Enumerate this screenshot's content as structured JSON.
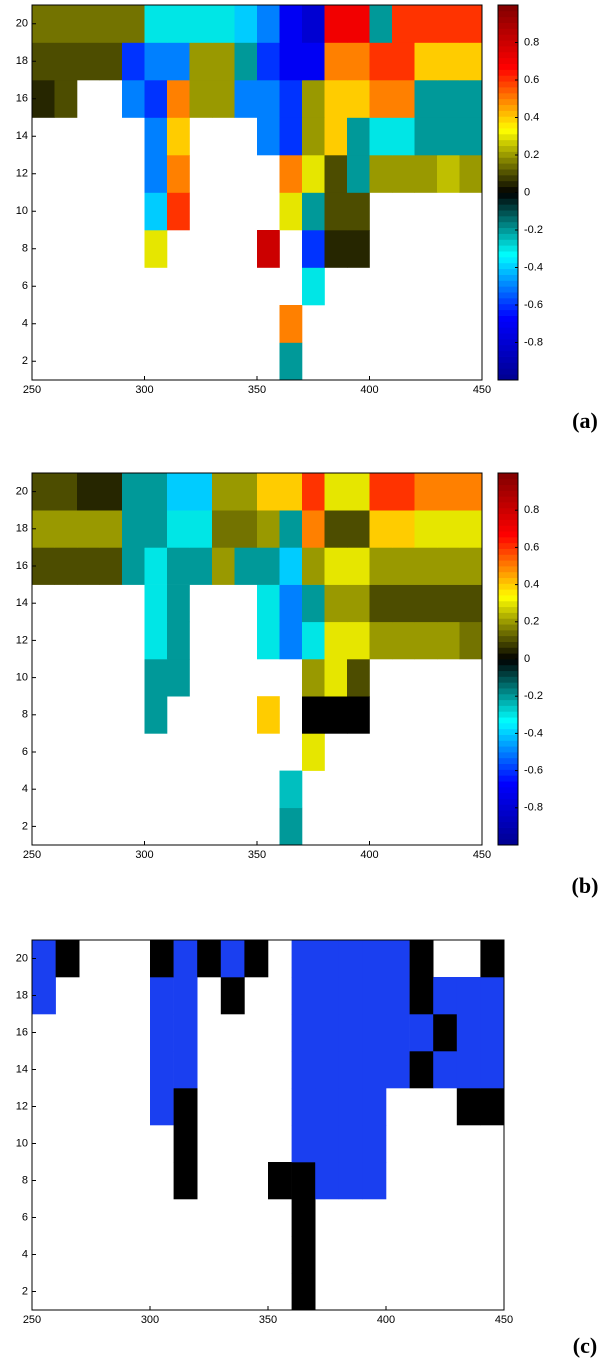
{
  "chart_data": [
    {
      "type": "heatmap",
      "panel_label": "(a)",
      "xbins": [
        250,
        260,
        270,
        280,
        290,
        300,
        310,
        320,
        330,
        340,
        350,
        360,
        370,
        380,
        390,
        400,
        410,
        420,
        430,
        440,
        450
      ],
      "ybins": [
        1,
        3,
        5,
        7,
        9,
        11,
        13,
        15,
        17,
        19,
        21
      ],
      "z": [
        [
          null,
          null,
          null,
          null,
          null,
          null,
          null,
          null,
          null,
          null,
          null,
          -0.2,
          null,
          null,
          null,
          null,
          null,
          null,
          null,
          null
        ],
        [
          null,
          null,
          null,
          null,
          null,
          null,
          null,
          null,
          null,
          null,
          null,
          0.5,
          null,
          null,
          null,
          null,
          null,
          null,
          null,
          null
        ],
        [
          null,
          null,
          null,
          null,
          null,
          null,
          null,
          null,
          null,
          null,
          null,
          null,
          -0.3,
          null,
          null,
          null,
          null,
          null,
          null,
          null
        ],
        [
          null,
          null,
          null,
          null,
          null,
          0.3,
          null,
          null,
          null,
          null,
          0.8,
          null,
          -0.6,
          0.05,
          0.05,
          null,
          null,
          null,
          null,
          null
        ],
        [
          null,
          null,
          null,
          null,
          null,
          -0.4,
          0.6,
          null,
          null,
          null,
          null,
          0.3,
          -0.2,
          0.1,
          0.1,
          null,
          null,
          null,
          null,
          null
        ],
        [
          null,
          null,
          null,
          null,
          null,
          -0.5,
          0.5,
          null,
          null,
          null,
          null,
          0.5,
          0.3,
          0.1,
          -0.2,
          0.2,
          0.2,
          0.2,
          0.25,
          0.2
        ],
        [
          null,
          null,
          null,
          null,
          null,
          -0.5,
          0.4,
          null,
          null,
          null,
          -0.5,
          -0.6,
          0.2,
          0.4,
          -0.2,
          -0.3,
          -0.3,
          -0.2,
          -0.2,
          -0.2
        ],
        [
          0.05,
          0.1,
          null,
          null,
          -0.5,
          -0.6,
          0.5,
          0.2,
          0.2,
          -0.5,
          -0.5,
          -0.6,
          0.2,
          0.4,
          0.4,
          0.5,
          0.5,
          -0.2,
          -0.2,
          -0.2
        ],
        [
          0.1,
          0.1,
          0.1,
          0.1,
          -0.6,
          -0.5,
          -0.5,
          0.2,
          0.2,
          -0.2,
          -0.6,
          -0.7,
          -0.7,
          0.5,
          0.5,
          0.6,
          0.6,
          0.4,
          0.4,
          0.4
        ],
        [
          0.15,
          0.15,
          0.15,
          0.15,
          0.15,
          -0.3,
          -0.3,
          -0.3,
          -0.3,
          -0.4,
          -0.5,
          -0.7,
          -0.8,
          0.7,
          0.7,
          -0.2,
          0.6,
          0.6,
          0.6,
          0.6
        ]
      ],
      "colormap": [
        "#00008f",
        "#0000ff",
        "#00ffff",
        "#000000",
        "#ffff00",
        "#ff0000",
        "#800000"
      ],
      "clim": [
        -1,
        1
      ],
      "cticks": [
        -0.8,
        -0.6,
        -0.4,
        -0.2,
        0,
        0.2,
        0.4,
        0.6,
        0.8
      ],
      "xlim": [
        250,
        450
      ],
      "ylim": [
        1,
        21
      ],
      "xticks": [
        250,
        300,
        350,
        400,
        450
      ],
      "yticks": [
        2,
        4,
        6,
        8,
        10,
        12,
        14,
        16,
        18,
        20
      ]
    },
    {
      "type": "heatmap",
      "panel_label": "(b)",
      "xbins": [
        250,
        260,
        270,
        280,
        290,
        300,
        310,
        320,
        330,
        340,
        350,
        360,
        370,
        380,
        390,
        400,
        410,
        420,
        430,
        440,
        450
      ],
      "ybins": [
        1,
        3,
        5,
        7,
        9,
        11,
        13,
        15,
        17,
        19,
        21
      ],
      "z": [
        [
          null,
          null,
          null,
          null,
          null,
          null,
          null,
          null,
          null,
          null,
          null,
          -0.2,
          null,
          null,
          null,
          null,
          null,
          null,
          null,
          null
        ],
        [
          null,
          null,
          null,
          null,
          null,
          null,
          null,
          null,
          null,
          null,
          null,
          -0.25,
          null,
          null,
          null,
          null,
          null,
          null,
          null,
          null
        ],
        [
          null,
          null,
          null,
          null,
          null,
          null,
          null,
          null,
          null,
          null,
          null,
          null,
          0.3,
          null,
          null,
          null,
          null,
          null,
          null,
          null
        ],
        [
          null,
          null,
          null,
          null,
          null,
          -0.2,
          null,
          null,
          null,
          null,
          0.4,
          null,
          0,
          0,
          0,
          null,
          null,
          null,
          null,
          null
        ],
        [
          null,
          null,
          null,
          null,
          null,
          -0.2,
          -0.2,
          null,
          null,
          null,
          null,
          null,
          0.2,
          0.3,
          0.1,
          null,
          null,
          null,
          null,
          null
        ],
        [
          null,
          null,
          null,
          null,
          null,
          -0.3,
          -0.2,
          null,
          null,
          null,
          -0.3,
          -0.5,
          -0.3,
          0.3,
          0.3,
          0.2,
          0.2,
          0.2,
          0.2,
          0.15
        ],
        [
          null,
          null,
          null,
          null,
          null,
          -0.3,
          -0.2,
          null,
          null,
          null,
          -0.3,
          -0.5,
          -0.2,
          0.2,
          0.2,
          0.1,
          0.1,
          0.1,
          0.1,
          0.1
        ],
        [
          0.1,
          0.1,
          0.1,
          0.1,
          -0.2,
          -0.3,
          -0.2,
          -0.2,
          0.2,
          -0.2,
          -0.2,
          -0.4,
          0.2,
          0.3,
          0.3,
          0.2,
          0.2,
          0.2,
          0.2,
          0.2
        ],
        [
          0.2,
          0.2,
          0.2,
          0.2,
          -0.2,
          -0.2,
          -0.3,
          -0.3,
          0.15,
          0.15,
          0.2,
          -0.2,
          0.5,
          0.1,
          0.1,
          0.4,
          0.4,
          0.3,
          0.3,
          0.3
        ],
        [
          0.1,
          0.1,
          0.05,
          0.05,
          -0.2,
          -0.2,
          -0.4,
          -0.4,
          0.2,
          0.2,
          0.4,
          0.4,
          0.6,
          0.3,
          0.3,
          0.6,
          0.6,
          0.5,
          0.5,
          0.5
        ]
      ],
      "colormap": [
        "#00008f",
        "#0000ff",
        "#00ffff",
        "#000000",
        "#ffff00",
        "#ff0000",
        "#800000"
      ],
      "clim": [
        -1,
        1
      ],
      "cticks": [
        -0.8,
        -0.6,
        -0.4,
        -0.2,
        0,
        0.2,
        0.4,
        0.6,
        0.8
      ],
      "xlim": [
        250,
        450
      ],
      "ylim": [
        1,
        21
      ],
      "xticks": [
        250,
        300,
        350,
        400,
        450
      ],
      "yticks": [
        2,
        4,
        6,
        8,
        10,
        12,
        14,
        16,
        18,
        20
      ]
    },
    {
      "type": "heatmap",
      "panel_label": "(c)",
      "xbins": [
        250,
        260,
        270,
        280,
        290,
        300,
        310,
        320,
        330,
        340,
        350,
        360,
        370,
        380,
        390,
        400,
        410,
        420,
        430,
        440,
        450
      ],
      "ybins": [
        1,
        3,
        5,
        7,
        9,
        11,
        13,
        15,
        17,
        19,
        21
      ],
      "z": [
        [
          null,
          null,
          null,
          null,
          null,
          null,
          null,
          null,
          null,
          null,
          null,
          0,
          null,
          null,
          null,
          null,
          null,
          null,
          null,
          null
        ],
        [
          null,
          null,
          null,
          null,
          null,
          null,
          null,
          null,
          null,
          null,
          null,
          0,
          null,
          null,
          null,
          null,
          null,
          null,
          null,
          null
        ],
        [
          null,
          null,
          null,
          null,
          null,
          null,
          null,
          null,
          null,
          null,
          null,
          0,
          null,
          null,
          null,
          null,
          null,
          null,
          null,
          null
        ],
        [
          null,
          null,
          null,
          null,
          null,
          null,
          0,
          null,
          null,
          null,
          0,
          0,
          1,
          1,
          1,
          null,
          null,
          null,
          null,
          null
        ],
        [
          null,
          null,
          null,
          null,
          null,
          null,
          0,
          null,
          null,
          null,
          null,
          1,
          1,
          1,
          1,
          null,
          null,
          null,
          null,
          null
        ],
        [
          null,
          null,
          null,
          null,
          null,
          1,
          0,
          null,
          null,
          null,
          null,
          1,
          1,
          1,
          1,
          null,
          null,
          null,
          0,
          0
        ],
        [
          null,
          null,
          null,
          null,
          null,
          1,
          1,
          null,
          null,
          null,
          null,
          1,
          1,
          1,
          1,
          1,
          0,
          1,
          1,
          1
        ],
        [
          null,
          null,
          null,
          null,
          null,
          1,
          1,
          null,
          null,
          null,
          null,
          1,
          1,
          1,
          1,
          1,
          1,
          0,
          1,
          1
        ],
        [
          1,
          null,
          null,
          null,
          null,
          1,
          1,
          null,
          0,
          null,
          null,
          1,
          1,
          1,
          1,
          1,
          0,
          1,
          1,
          1
        ],
        [
          1,
          0,
          null,
          null,
          null,
          0,
          1,
          0,
          1,
          0,
          null,
          1,
          1,
          1,
          1,
          1,
          0,
          null,
          null,
          0
        ]
      ],
      "colors": [
        "#000000",
        "#1a3ff0"
      ],
      "xlim": [
        250,
        450
      ],
      "ylim": [
        1,
        21
      ],
      "xticks": [
        250,
        300,
        350,
        400,
        450
      ],
      "yticks": [
        2,
        4,
        6,
        8,
        10,
        12,
        14,
        16,
        18,
        20
      ]
    }
  ]
}
